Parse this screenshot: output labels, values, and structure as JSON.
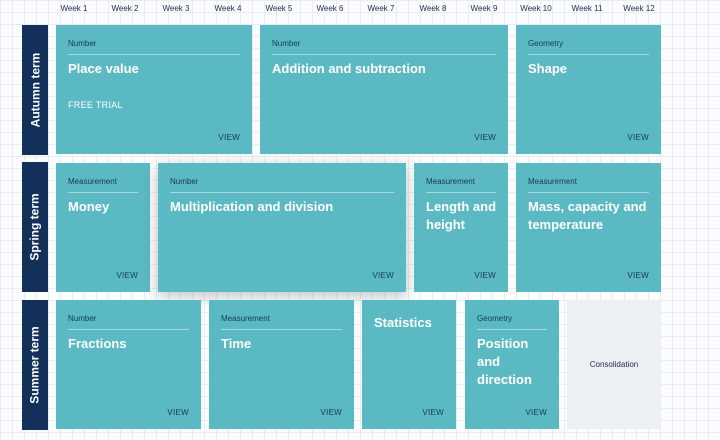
{
  "weeks": [
    "Week 1",
    "Week 2",
    "Week 3",
    "Week 4",
    "Week 5",
    "Week 6",
    "Week 7",
    "Week 8",
    "Week 9",
    "Week 10",
    "Week 11",
    "Week 12"
  ],
  "terms": {
    "autumn": "Autumn term",
    "spring": "Spring term",
    "summer": "Summer term"
  },
  "view_label": "VIEW",
  "blocks": {
    "place_value": {
      "category": "Number",
      "title": "Place value",
      "badge": "FREE TRIAL"
    },
    "addition_subtraction": {
      "category": "Number",
      "title": "Addition and subtraction"
    },
    "shape": {
      "category": "Geometry",
      "title": "Shape"
    },
    "money": {
      "category": "Measurement",
      "title": "Money"
    },
    "multiplication_division": {
      "category": "Number",
      "title": "Multiplication and division"
    },
    "length_height": {
      "category": "Measurement",
      "title": "Length and height"
    },
    "mass_capacity": {
      "category": "Measurement",
      "title": "Mass, capacity and temperature"
    },
    "fractions": {
      "category": "Number",
      "title": "Fractions"
    },
    "time": {
      "category": "Measurement",
      "title": "Time"
    },
    "statistics": {
      "title": "Statistics"
    },
    "position_direction": {
      "category": "Geometry",
      "title": "Position and direction"
    },
    "consolidation": {
      "title": "Consolidation"
    }
  },
  "colors": {
    "card": "#5bb9c4",
    "term_bar": "#13305b",
    "consolidation_bg": "#edf0f3"
  }
}
